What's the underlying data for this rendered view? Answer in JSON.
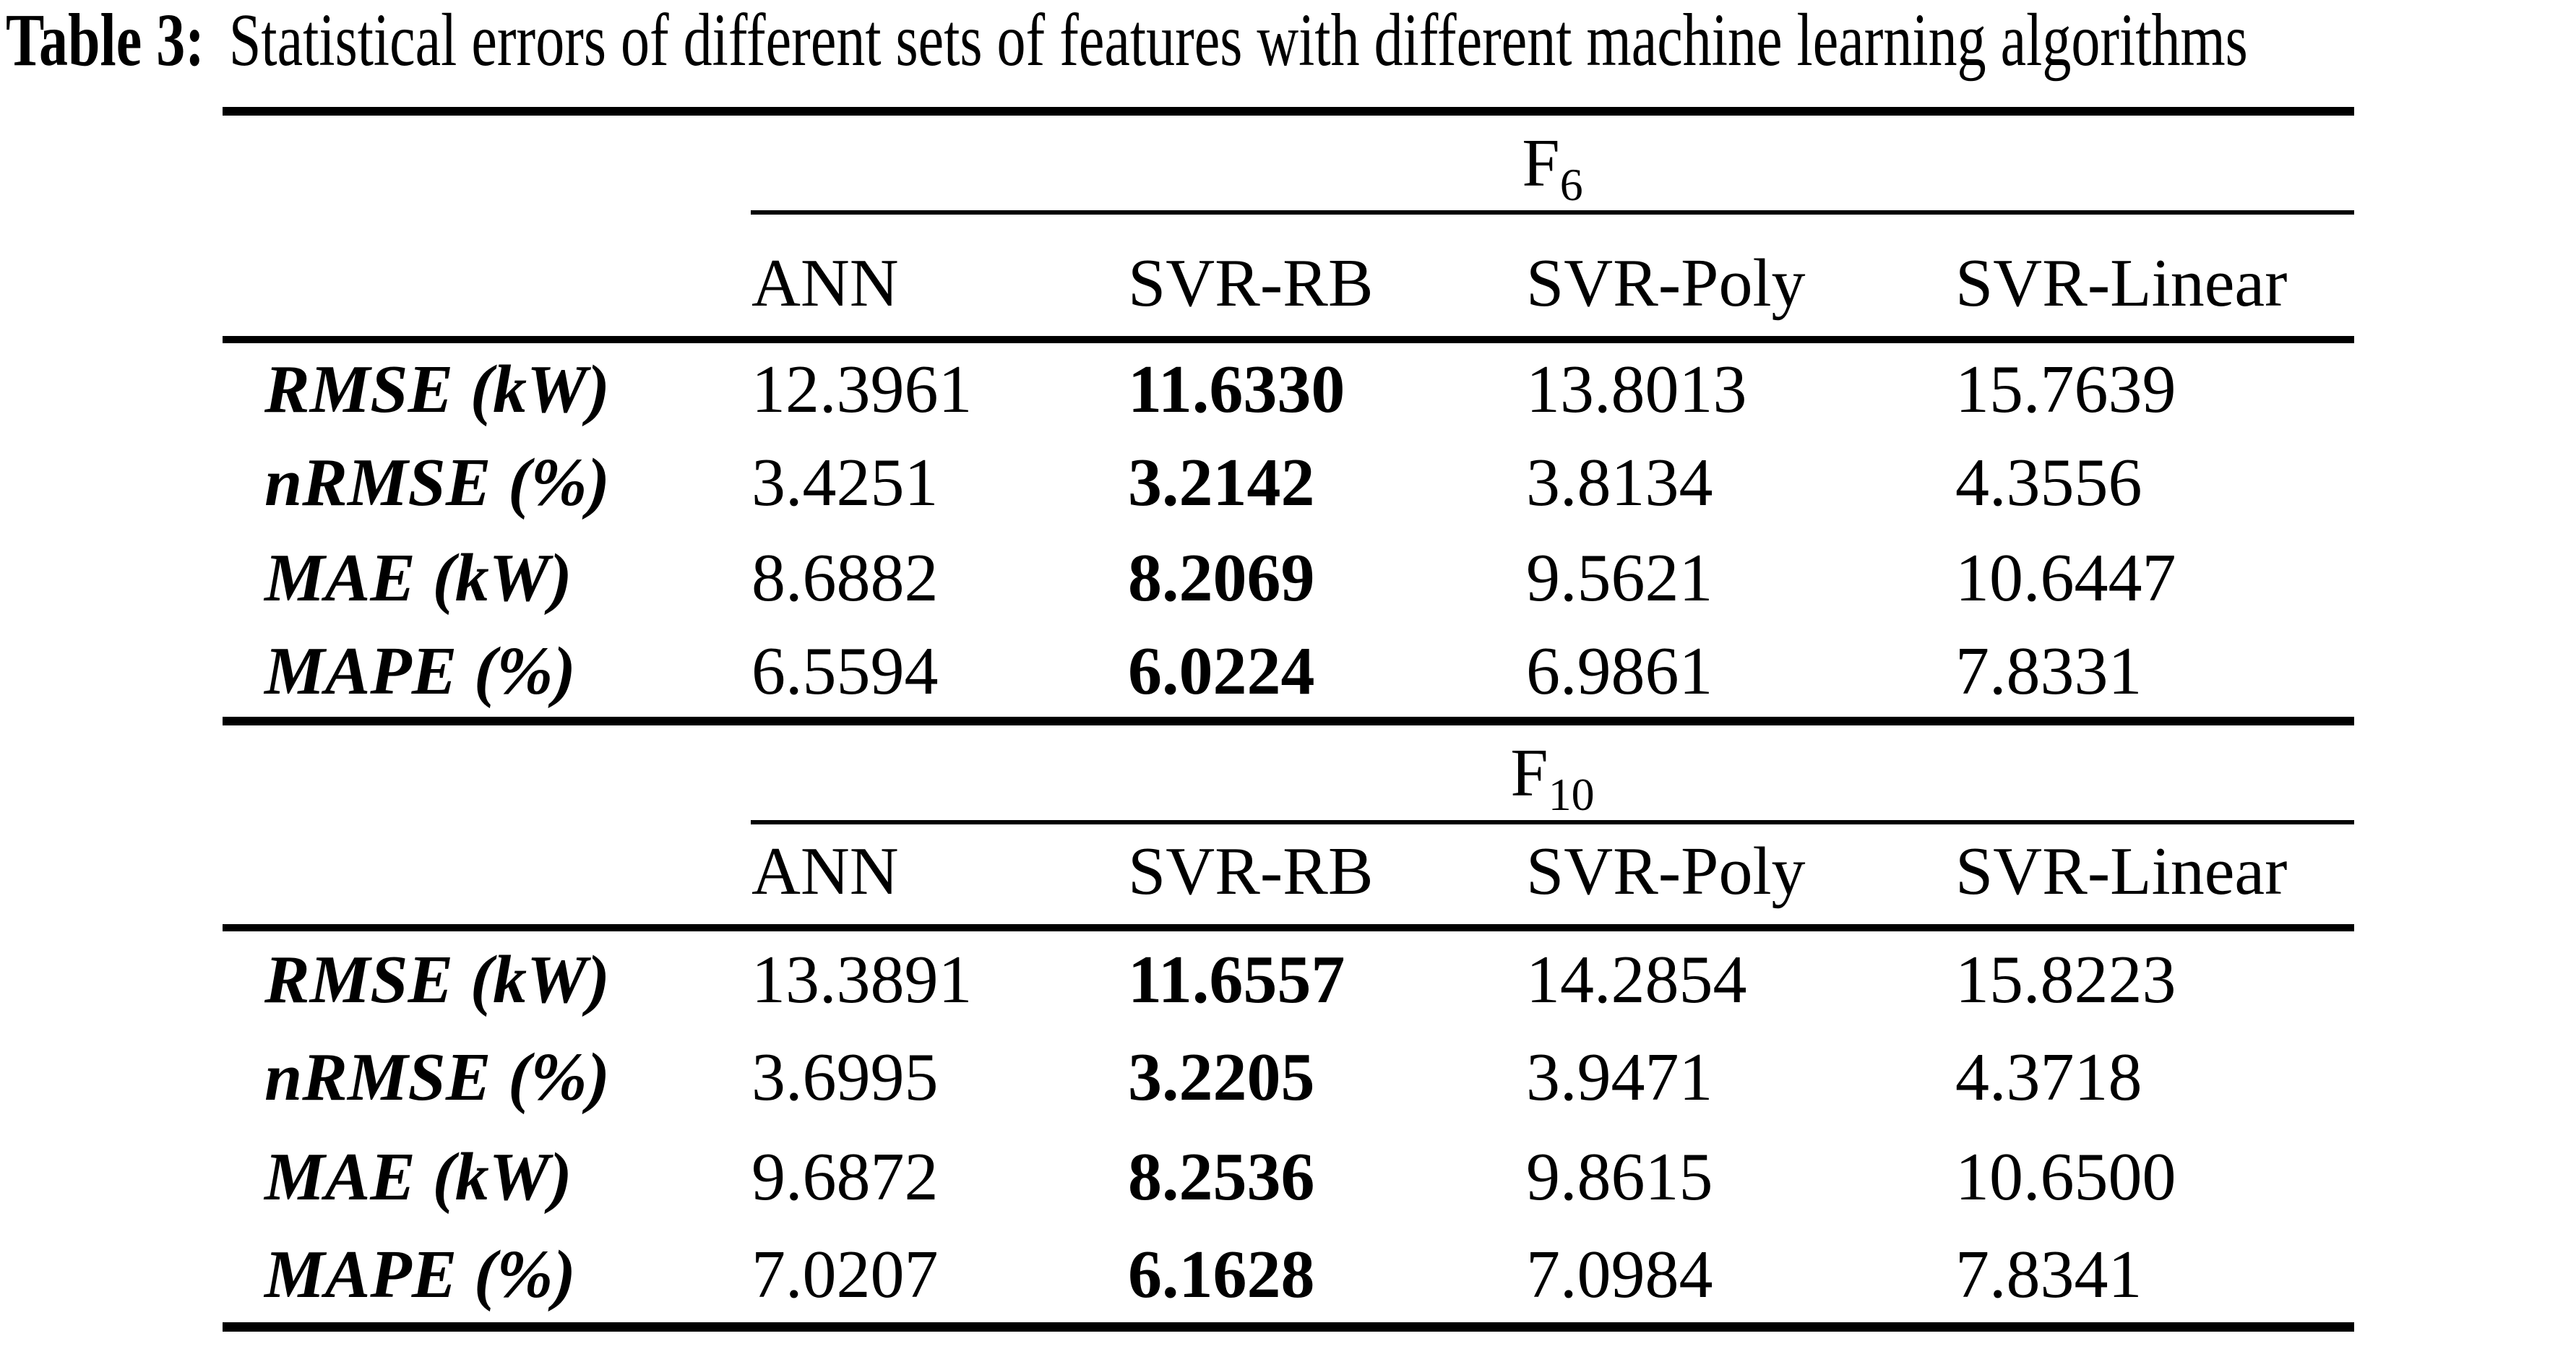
{
  "caption": {
    "prefix": "Table 3:",
    "text": "Statistical errors of different sets of features with different machine learning algorithms"
  },
  "table": {
    "column_headers": [
      "ANN",
      "SVR-RB",
      "SVR-Poly",
      "SVR-Linear"
    ],
    "sections": [
      {
        "group_base": "F",
        "group_sub": "6",
        "rows": [
          {
            "label": "RMSE (kW)",
            "values": [
              "12.3961",
              "11.6330",
              "13.8013",
              "15.7639"
            ]
          },
          {
            "label": "nRMSE (%)",
            "values": [
              "3.4251",
              "3.2142",
              "3.8134",
              "4.3556"
            ]
          },
          {
            "label": "MAE (kW)",
            "values": [
              "8.6882",
              "8.2069",
              "9.5621",
              "10.6447"
            ]
          },
          {
            "label": "MAPE (%)",
            "values": [
              "6.5594",
              "6.0224",
              "6.9861",
              "7.8331"
            ]
          }
        ]
      },
      {
        "group_base": "F",
        "group_sub": "10",
        "rows": [
          {
            "label": "RMSE (kW)",
            "values": [
              "13.3891",
              "11.6557",
              "14.2854",
              "15.8223"
            ]
          },
          {
            "label": "nRMSE (%)",
            "values": [
              "3.6995",
              "3.2205",
              "3.9471",
              "4.3718"
            ]
          },
          {
            "label": "MAE (kW)",
            "values": [
              "9.6872",
              "8.2536",
              "9.8615",
              "10.6500"
            ]
          },
          {
            "label": "MAPE (%)",
            "values": [
              "7.0207",
              "6.1628",
              "7.0984",
              "7.8341"
            ]
          }
        ]
      }
    ]
  }
}
